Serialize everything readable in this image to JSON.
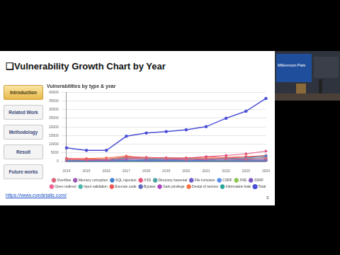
{
  "slide": {
    "title": "❑Vulnerability Growth Chart by Year",
    "nav": [
      {
        "label": "Introduction",
        "active": true
      },
      {
        "label": "Related Work",
        "active": false
      },
      {
        "label": "Methodology",
        "active": false
      },
      {
        "label": "Result",
        "active": false
      },
      {
        "label": "Future works",
        "active": false
      }
    ],
    "url": "https://www.cvedetails.com/",
    "page_number": 3,
    "video_label": "Millennium Park"
  },
  "chart_data": {
    "type": "line",
    "title": "Vulnerabilities by type & year",
    "categories": [
      "2014",
      "2015",
      "2016",
      "2017",
      "2018",
      "2019",
      "2020",
      "2021",
      "2022",
      "2023",
      "2024"
    ],
    "ylim": [
      0,
      40000
    ],
    "yticks": [
      0,
      5000,
      10000,
      15000,
      20000,
      25000,
      30000,
      35000,
      40000
    ],
    "grid": true,
    "legend": "bottom",
    "marker": "circle",
    "series": [
      {
        "name": "Overflow",
        "color": "#d9667a",
        "values": [
          1200,
          1000,
          1400,
          2400,
          2100,
          1700,
          1300,
          1500,
          1700,
          1500,
          1900
        ]
      },
      {
        "name": "Memory corruption",
        "color": "#9b59b6",
        "values": [
          900,
          800,
          700,
          1200,
          1000,
          1100,
          900,
          1100,
          1200,
          1000,
          1200
        ]
      },
      {
        "name": "SQL injection",
        "color": "#3f7fd1",
        "values": [
          300,
          250,
          200,
          500,
          500,
          550,
          450,
          700,
          1800,
          2000,
          3200
        ]
      },
      {
        "name": "XSS",
        "color": "#e8507a",
        "values": [
          1100,
          800,
          600,
          1500,
          2000,
          2100,
          2000,
          2800,
          3500,
          4400,
          6000
        ]
      },
      {
        "name": "Directory traversal",
        "color": "#4aa3a0",
        "values": [
          100,
          150,
          100,
          300,
          400,
          450,
          400,
          550,
          600,
          700,
          900
        ]
      },
      {
        "name": "File inclusion",
        "color": "#6a5acd",
        "values": [
          50,
          40,
          30,
          80,
          100,
          80,
          60,
          90,
          150,
          200,
          300
        ]
      },
      {
        "name": "CSRF",
        "color": "#5b8def",
        "values": [
          250,
          250,
          200,
          400,
          500,
          550,
          400,
          500,
          700,
          900,
          1100
        ]
      },
      {
        "name": "XXE",
        "color": "#8bc34a",
        "values": [
          60,
          70,
          70,
          120,
          100,
          90,
          60,
          50,
          50,
          40,
          40
        ]
      },
      {
        "name": "SSRF",
        "color": "#7e57c2",
        "values": [
          30,
          30,
          40,
          60,
          90,
          110,
          100,
          120,
          150,
          150,
          200
        ]
      },
      {
        "name": "Open redirect",
        "color": "#f06292",
        "values": [
          60,
          80,
          90,
          100,
          150,
          100,
          100,
          120,
          100,
          120,
          130
        ]
      },
      {
        "name": "Input validation",
        "color": "#4db6ac",
        "values": [
          500,
          700,
          600,
          1800,
          1600,
          1500,
          1700,
          1500,
          1700,
          1800,
          2200
        ]
      },
      {
        "name": "Execute code",
        "color": "#ef5350",
        "values": [
          1800,
          1500,
          1300,
          2700,
          2400,
          2100,
          2000,
          2600,
          2400,
          2800,
          3500
        ]
      },
      {
        "name": "Bypass",
        "color": "#5c6bc0",
        "values": [
          300,
          400,
          450,
          700,
          600,
          500,
          400,
          500,
          600,
          700,
          800
        ]
      },
      {
        "name": "Gain privilege",
        "color": "#ab47bc",
        "values": [
          300,
          400,
          500,
          500,
          400,
          400,
          300,
          300,
          300,
          300,
          400
        ]
      },
      {
        "name": "Denial of service",
        "color": "#ff7043",
        "values": [
          1600,
          1700,
          2100,
          3200,
          2100,
          1900,
          1700,
          2000,
          2000,
          2600,
          2800
        ]
      },
      {
        "name": "Information leak",
        "color": "#26a69a",
        "values": [
          1000,
          900,
          1200,
          2000,
          1600,
          1200,
          1400,
          1500,
          1400,
          1600,
          2000
        ]
      },
      {
        "name": "Total",
        "color": "#4b4fd6",
        "values": [
          7937,
          6487,
          6447,
          14643,
          16509,
          17305,
          18350,
          20155,
          25050,
          29065,
          36500
        ]
      }
    ]
  }
}
